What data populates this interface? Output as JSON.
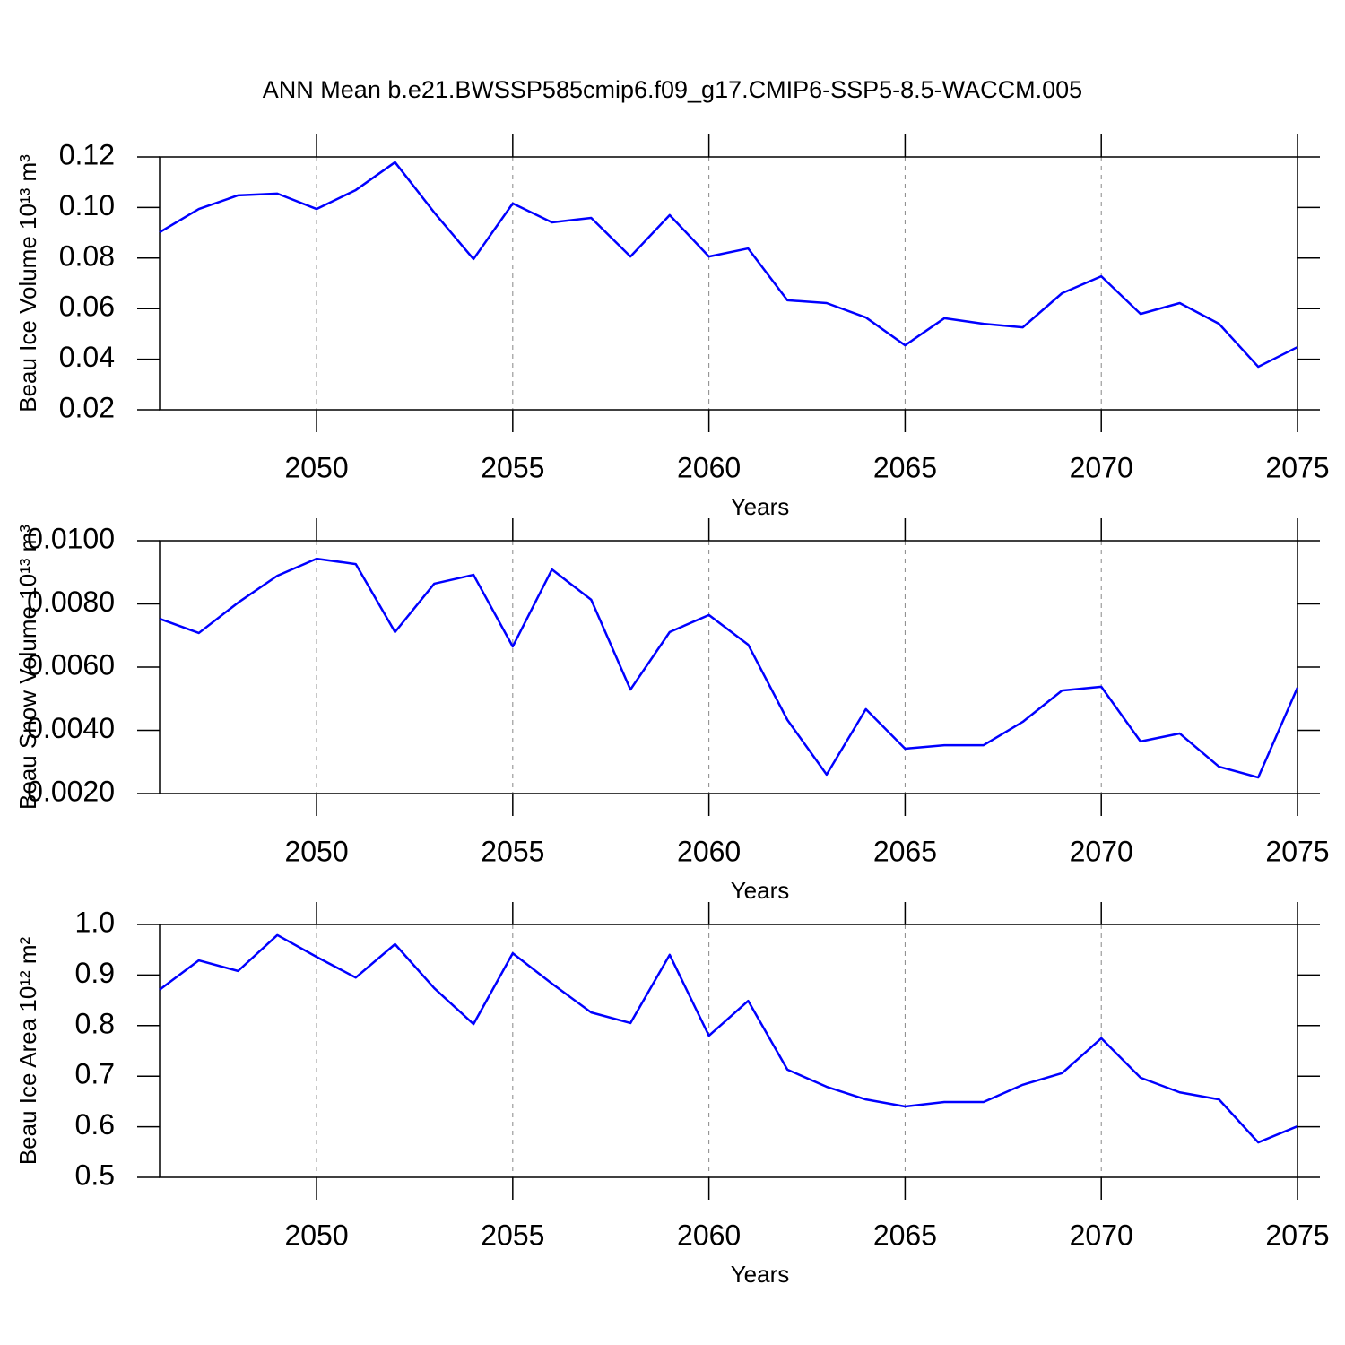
{
  "title": "ANN Mean b.e21.BWSSP585cmip6.f09_g17.CMIP6-SSP5-8.5-WACCM.005",
  "chart_data": [
    {
      "type": "line",
      "ylabel": "Beau Ice Volume 10¹³ m³",
      "xlabel": "Years",
      "color": "#0000ff",
      "grid": true,
      "x": [
        2046,
        2047,
        2048,
        2049,
        2050,
        2051,
        2052,
        2053,
        2054,
        2055,
        2056,
        2057,
        2058,
        2059,
        2060,
        2061,
        2062,
        2063,
        2064,
        2065,
        2066,
        2067,
        2068,
        2069,
        2070,
        2071,
        2072,
        2073,
        2074,
        2075
      ],
      "values": [
        0.0902,
        0.0994,
        0.1048,
        0.1055,
        0.0994,
        0.1069,
        0.1179,
        0.098,
        0.0796,
        0.1016,
        0.0941,
        0.0959,
        0.0806,
        0.097,
        0.0806,
        0.0838,
        0.0633,
        0.0622,
        0.0565,
        0.0455,
        0.0562,
        0.054,
        0.0526,
        0.0661,
        0.0728,
        0.0579,
        0.0622,
        0.054,
        0.037,
        0.0448
      ],
      "xlim": [
        2046,
        2075
      ],
      "xticks": [
        2050,
        2055,
        2060,
        2065,
        2070,
        2075
      ],
      "ylim": [
        0.02,
        0.12
      ],
      "yticks": [
        0.02,
        0.04,
        0.06,
        0.08,
        {
          "value": 0.1,
          "label": "0.10"
        },
        0.12
      ]
    },
    {
      "type": "line",
      "ylabel": "Beau Snow Volume 10¹³ m³",
      "xlabel": "Years",
      "color": "#0000ff",
      "grid": true,
      "x": [
        2046,
        2047,
        2048,
        2049,
        2050,
        2051,
        2052,
        2053,
        2054,
        2055,
        2056,
        2057,
        2058,
        2059,
        2060,
        2061,
        2062,
        2063,
        2064,
        2065,
        2066,
        2067,
        2068,
        2069,
        2070,
        2071,
        2072,
        2073,
        2074,
        2075
      ],
      "values": [
        0.00753,
        0.00708,
        0.00804,
        0.00889,
        0.00943,
        0.00926,
        0.00711,
        0.00864,
        0.00892,
        0.00665,
        0.00909,
        0.00813,
        0.00529,
        0.00711,
        0.00765,
        0.00671,
        0.00433,
        0.0026,
        0.00467,
        0.00342,
        0.00353,
        0.00353,
        0.00427,
        0.00526,
        0.00538,
        0.00365,
        0.0039,
        0.00285,
        0.00251,
        0.00535
      ],
      "xlim": [
        2046,
        2075
      ],
      "xticks": [
        2050,
        2055,
        2060,
        2065,
        2070,
        2075
      ],
      "ylim": [
        0.002,
        0.01
      ],
      "yticks": [
        {
          "value": 0.002,
          "label": "0.0020"
        },
        {
          "value": 0.004,
          "label": "0.0040"
        },
        {
          "value": 0.006,
          "label": "0.0060"
        },
        {
          "value": 0.008,
          "label": "0.0080"
        },
        {
          "value": 0.01,
          "label": "0.0100"
        }
      ]
    },
    {
      "type": "line",
      "ylabel": "Beau Ice Area 10¹² m²",
      "xlabel": "Years",
      "color": "#0000ff",
      "grid": true,
      "x": [
        2046,
        2047,
        2048,
        2049,
        2050,
        2051,
        2052,
        2053,
        2054,
        2055,
        2056,
        2057,
        2058,
        2059,
        2060,
        2061,
        2062,
        2063,
        2064,
        2065,
        2066,
        2067,
        2068,
        2069,
        2070,
        2071,
        2072,
        2073,
        2074,
        2075
      ],
      "values": [
        0.871,
        0.929,
        0.908,
        0.979,
        0.936,
        0.895,
        0.961,
        0.874,
        0.803,
        0.943,
        0.883,
        0.826,
        0.805,
        0.94,
        0.78,
        0.849,
        0.713,
        0.679,
        0.654,
        0.64,
        0.649,
        0.649,
        0.683,
        0.706,
        0.775,
        0.697,
        0.668,
        0.654,
        0.569,
        0.601
      ],
      "xlim": [
        2046,
        2075
      ],
      "xticks": [
        2050,
        2055,
        2060,
        2065,
        2070,
        2075
      ],
      "ylim": [
        0.5,
        1.0
      ],
      "yticks": [
        0.5,
        0.6,
        0.7,
        0.8,
        0.9,
        {
          "value": 1.0,
          "label": "1.0"
        }
      ]
    }
  ]
}
